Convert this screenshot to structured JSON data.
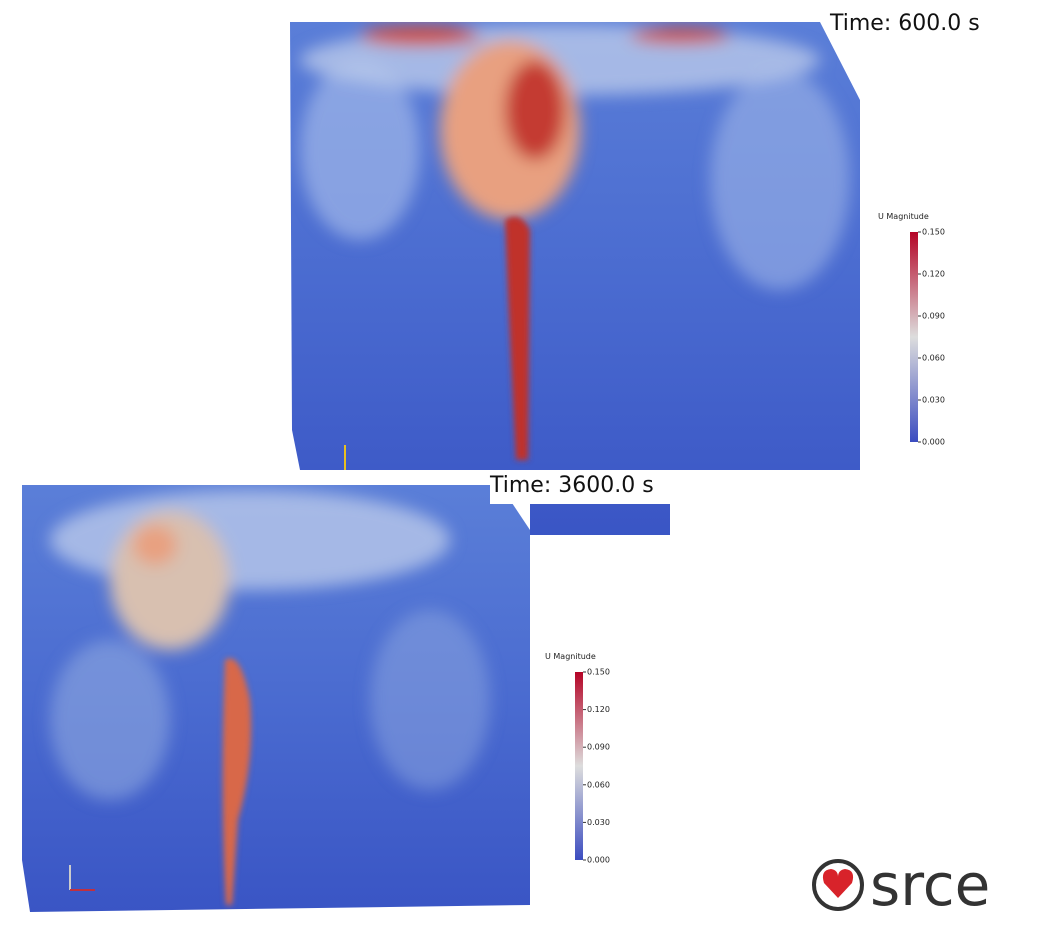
{
  "panels": [
    {
      "time_label": "Time: 600.0 s",
      "colorbar": {
        "title": "U Magnitude",
        "ticks": [
          "0.150",
          "0.120",
          "0.090",
          "0.060",
          "0.030",
          "0.000"
        ]
      }
    },
    {
      "time_label": "Time: 3600.0 s",
      "colorbar": {
        "title": "U Magnitude",
        "ticks": [
          "0.150",
          "0.120",
          "0.090",
          "0.060",
          "0.030",
          "0.000"
        ]
      }
    }
  ],
  "logo": {
    "text": "srce"
  }
}
